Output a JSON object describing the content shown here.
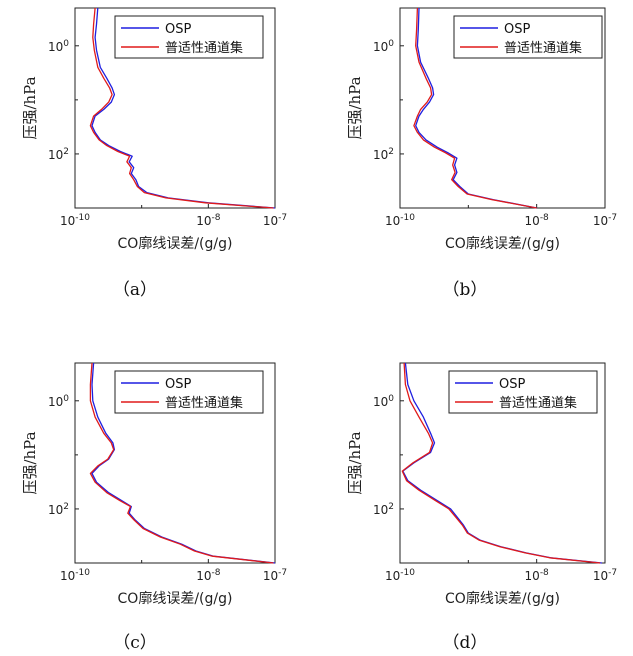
{
  "chart_data": [
    {
      "type": "line",
      "caption": "（a）",
      "xlabel": "CO廓线误差/(g/g)",
      "ylabel": "压强/hPa",
      "x_scale": "log",
      "y_scale": "log",
      "y_reversed": true,
      "xlim": [
        1e-10,
        1e-07
      ],
      "ylim": [
        0.2,
        1000
      ],
      "xtick_labels": [
        "10-10",
        "10-8",
        "10-7"
      ],
      "ytick_labels": [
        "100",
        "102"
      ],
      "legend": "top-right",
      "grid": false,
      "series": [
        {
          "name": "OSP",
          "color": "#1f1fe0",
          "points": [
            [
              2.2e-10,
              0.2
            ],
            [
              2.1e-10,
              0.4
            ],
            [
              2e-10,
              0.7
            ],
            [
              2.1e-10,
              1.2
            ],
            [
              2.4e-10,
              2.5
            ],
            [
              3e-10,
              4
            ],
            [
              3.6e-10,
              6
            ],
            [
              3.9e-10,
              8
            ],
            [
              3.5e-10,
              11
            ],
            [
              2.7e-10,
              15
            ],
            [
              2e-10,
              20
            ],
            [
              1.8e-10,
              30
            ],
            [
              2e-10,
              40
            ],
            [
              2.4e-10,
              55
            ],
            [
              3.2e-10,
              70
            ],
            [
              4.8e-10,
              90
            ],
            [
              7.2e-10,
              110
            ],
            [
              6.5e-10,
              140
            ],
            [
              7.6e-10,
              180
            ],
            [
              7e-10,
              230
            ],
            [
              8.2e-10,
              300
            ],
            [
              9e-10,
              400
            ],
            [
              1.2e-09,
              520
            ],
            [
              2.5e-09,
              650
            ],
            [
              1e-08,
              800
            ],
            [
              1e-07,
              1000
            ]
          ]
        },
        {
          "name": "普适性通道集",
          "color": "#e01a1a",
          "points": [
            [
              2e-10,
              0.2
            ],
            [
              1.9e-10,
              0.4
            ],
            [
              1.85e-10,
              0.7
            ],
            [
              1.95e-10,
              1.2
            ],
            [
              2.2e-10,
              2.5
            ],
            [
              2.7e-10,
              4
            ],
            [
              3.3e-10,
              6
            ],
            [
              3.6e-10,
              8
            ],
            [
              3.2e-10,
              11
            ],
            [
              2.5e-10,
              15
            ],
            [
              1.9e-10,
              20
            ],
            [
              1.7e-10,
              30
            ],
            [
              1.9e-10,
              40
            ],
            [
              2.3e-10,
              55
            ],
            [
              3e-10,
              70
            ],
            [
              4.4e-10,
              90
            ],
            [
              6.6e-10,
              110
            ],
            [
              6e-10,
              140
            ],
            [
              7e-10,
              180
            ],
            [
              6.6e-10,
              230
            ],
            [
              7.6e-10,
              300
            ],
            [
              8.6e-10,
              400
            ],
            [
              1.1e-09,
              520
            ],
            [
              2.3e-09,
              650
            ],
            [
              9e-09,
              800
            ],
            [
              9.5e-08,
              1000
            ]
          ]
        }
      ]
    },
    {
      "type": "line",
      "caption": "（b）",
      "xlabel": "CO廓线误差/(g/g)",
      "ylabel": "压强/hPa",
      "x_scale": "log",
      "y_scale": "log",
      "y_reversed": true,
      "xlim": [
        1e-10,
        1e-07
      ],
      "ylim": [
        0.2,
        1000
      ],
      "xtick_labels": [
        "10-10",
        "10-8",
        "10-7"
      ],
      "ytick_labels": [
        "100",
        "102"
      ],
      "legend": "top-right",
      "grid": false,
      "series": [
        {
          "name": "OSP",
          "color": "#1f1fe0",
          "points": [
            [
              1.9e-10,
              0.2
            ],
            [
              1.85e-10,
              0.5
            ],
            [
              1.8e-10,
              1.0
            ],
            [
              2e-10,
              2.0
            ],
            [
              2.6e-10,
              4
            ],
            [
              3e-10,
              6
            ],
            [
              3.1e-10,
              8
            ],
            [
              2.7e-10,
              11
            ],
            [
              2.2e-10,
              15
            ],
            [
              1.9e-10,
              20
            ],
            [
              1.7e-10,
              30
            ],
            [
              1.9e-10,
              40
            ],
            [
              2.4e-10,
              55
            ],
            [
              3.5e-10,
              75
            ],
            [
              5e-10,
              95
            ],
            [
              6.8e-10,
              120
            ],
            [
              6.3e-10,
              160
            ],
            [
              6.8e-10,
              220
            ],
            [
              6e-10,
              300
            ],
            [
              7.5e-10,
              400
            ],
            [
              1e-09,
              550
            ],
            [
              2.3e-09,
              700
            ],
            [
              1e-08,
              1000
            ]
          ]
        },
        {
          "name": "普适性通道集",
          "color": "#e01a1a",
          "points": [
            [
              1.8e-10,
              0.2
            ],
            [
              1.75e-10,
              0.5
            ],
            [
              1.7e-10,
              1.0
            ],
            [
              1.9e-10,
              2.0
            ],
            [
              2.4e-10,
              4
            ],
            [
              2.8e-10,
              6
            ],
            [
              2.9e-10,
              8
            ],
            [
              2.5e-10,
              11
            ],
            [
              2e-10,
              15
            ],
            [
              1.8e-10,
              20
            ],
            [
              1.6e-10,
              30
            ],
            [
              1.8e-10,
              40
            ],
            [
              2.2e-10,
              55
            ],
            [
              3.2e-10,
              75
            ],
            [
              4.6e-10,
              95
            ],
            [
              6.3e-10,
              120
            ],
            [
              5.9e-10,
              160
            ],
            [
              6.4e-10,
              220
            ],
            [
              5.7e-10,
              300
            ],
            [
              7.1e-10,
              400
            ],
            [
              9.6e-10,
              550
            ],
            [
              2.2e-09,
              700
            ],
            [
              1e-08,
              1000
            ]
          ]
        }
      ]
    },
    {
      "type": "line",
      "caption": "（c）",
      "xlabel": "CO廓线误差/(g/g)",
      "ylabel": "压强/hPa",
      "x_scale": "log",
      "y_scale": "log",
      "y_reversed": true,
      "xlim": [
        1e-10,
        1e-07
      ],
      "ylim": [
        0.2,
        1000
      ],
      "xtick_labels": [
        "10-10",
        "10-8",
        "10-7"
      ],
      "ytick_labels": [
        "100",
        "102"
      ],
      "legend": "top-right",
      "grid": false,
      "series": [
        {
          "name": "OSP",
          "color": "#1f1fe0",
          "points": [
            [
              1.9e-10,
              0.2
            ],
            [
              1.8e-10,
              0.5
            ],
            [
              1.85e-10,
              1.0
            ],
            [
              2.2e-10,
              2.0
            ],
            [
              2.9e-10,
              4
            ],
            [
              3.7e-10,
              6
            ],
            [
              3.9e-10,
              8
            ],
            [
              3.2e-10,
              12
            ],
            [
              2.3e-10,
              16
            ],
            [
              1.8e-10,
              22
            ],
            [
              2.1e-10,
              32
            ],
            [
              3.2e-10,
              50
            ],
            [
              5e-10,
              70
            ],
            [
              7e-10,
              90
            ],
            [
              6.5e-10,
              120
            ],
            [
              8e-10,
              160
            ],
            [
              1.1e-09,
              230
            ],
            [
              2e-09,
              330
            ],
            [
              4e-09,
              450
            ],
            [
              6.5e-09,
              600
            ],
            [
              1.2e-08,
              750
            ],
            [
              1e-07,
              1000
            ]
          ]
        },
        {
          "name": "普适性通道集",
          "color": "#e01a1a",
          "points": [
            [
              1.8e-10,
              0.2
            ],
            [
              1.7e-10,
              0.5
            ],
            [
              1.7e-10,
              1.0
            ],
            [
              2e-10,
              2.0
            ],
            [
              2.7e-10,
              4
            ],
            [
              3.5e-10,
              6
            ],
            [
              3.8e-10,
              8
            ],
            [
              3.1e-10,
              12
            ],
            [
              2.2e-10,
              16
            ],
            [
              1.7e-10,
              22
            ],
            [
              2e-10,
              32
            ],
            [
              3e-10,
              50
            ],
            [
              4.7e-10,
              70
            ],
            [
              6.8e-10,
              90
            ],
            [
              6.2e-10,
              120
            ],
            [
              7.7e-10,
              160
            ],
            [
              1.05e-09,
              230
            ],
            [
              1.9e-09,
              330
            ],
            [
              3.8e-09,
              450
            ],
            [
              6.2e-09,
              600
            ],
            [
              1.15e-08,
              750
            ],
            [
              9.5e-08,
              1000
            ]
          ]
        }
      ]
    },
    {
      "type": "line",
      "caption": "（d）",
      "xlabel": "CO廓线误差/(g/g)",
      "ylabel": "压强/hPa",
      "x_scale": "log",
      "y_scale": "log",
      "y_reversed": true,
      "xlim": [
        1e-10,
        1e-07
      ],
      "ylim": [
        0.2,
        1000
      ],
      "xtick_labels": [
        "10-10",
        "10-8",
        "10-7"
      ],
      "ytick_labels": [
        "100",
        "102"
      ],
      "legend": "top-right",
      "grid": false,
      "series": [
        {
          "name": "OSP",
          "color": "#1f1fe0",
          "points": [
            [
              1.2e-10,
              0.2
            ],
            [
              1.3e-10,
              0.5
            ],
            [
              1.6e-10,
              1.0
            ],
            [
              2.2e-10,
              2.0
            ],
            [
              2.8e-10,
              4
            ],
            [
              3.2e-10,
              6
            ],
            [
              2.8e-10,
              9
            ],
            [
              1.6e-10,
              14
            ],
            [
              1.1e-10,
              20
            ],
            [
              1.3e-10,
              30
            ],
            [
              2e-10,
              45
            ],
            [
              3.5e-10,
              70
            ],
            [
              5.5e-10,
              100
            ],
            [
              6.8e-10,
              140
            ],
            [
              8.5e-10,
              200
            ],
            [
              1e-09,
              280
            ],
            [
              1.5e-09,
              380
            ],
            [
              3e-09,
              500
            ],
            [
              7e-09,
              650
            ],
            [
              1.6e-08,
              800
            ],
            [
              9e-08,
              1000
            ]
          ]
        },
        {
          "name": "普适性通道集",
          "color": "#e01a1a",
          "points": [
            [
              1.15e-10,
              0.2
            ],
            [
              1.2e-10,
              0.5
            ],
            [
              1.4e-10,
              1.0
            ],
            [
              1.9e-10,
              2.0
            ],
            [
              2.6e-10,
              4
            ],
            [
              3e-10,
              6
            ],
            [
              2.7e-10,
              9
            ],
            [
              1.55e-10,
              14
            ],
            [
              1.08e-10,
              20
            ],
            [
              1.25e-10,
              30
            ],
            [
              1.9e-10,
              45
            ],
            [
              3.3e-10,
              70
            ],
            [
              5.2e-10,
              100
            ],
            [
              6.5e-10,
              140
            ],
            [
              8.2e-10,
              200
            ],
            [
              9.7e-10,
              280
            ],
            [
              1.45e-09,
              380
            ],
            [
              2.9e-09,
              500
            ],
            [
              6.8e-09,
              650
            ],
            [
              1.55e-08,
              800
            ],
            [
              8.5e-08,
              1000
            ]
          ]
        }
      ]
    }
  ]
}
